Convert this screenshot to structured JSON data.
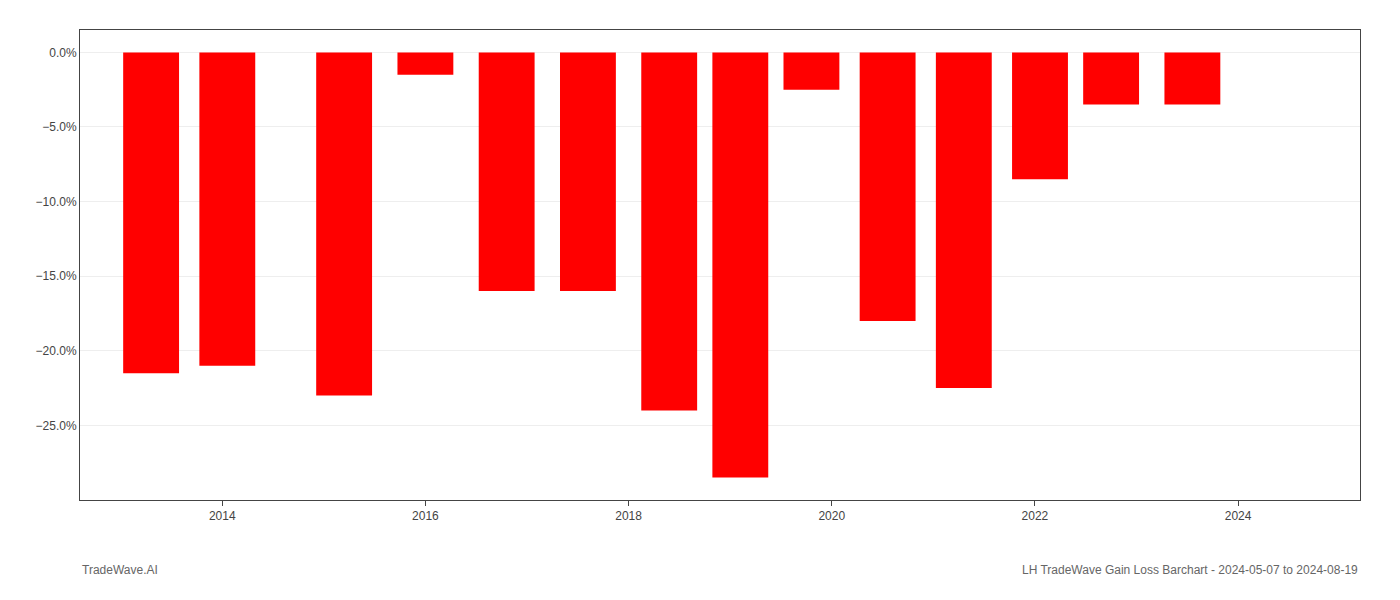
{
  "chart_data": {
    "type": "bar",
    "x": [
      2013.3,
      2014.05,
      2015.2,
      2016.0,
      2016.8,
      2017.6,
      2018.4,
      2019.1,
      2019.8,
      2020.55,
      2021.3,
      2022.05,
      2022.75,
      2023.55
    ],
    "values": [
      -21.5,
      -21.0,
      -23.0,
      -1.5,
      -16.0,
      -16.0,
      -24.0,
      -28.5,
      -2.5,
      -18.0,
      -22.5,
      -8.5,
      -3.5,
      -3.5
    ],
    "color": "#ff0000",
    "xlim": [
      2012.6,
      2025.2
    ],
    "xticks": [
      2014,
      2016,
      2018,
      2020,
      2022,
      2024
    ],
    "ylim": [
      -30,
      1.5
    ],
    "yticks": [
      {
        "value": 0.0,
        "label": "0.0%"
      },
      {
        "value": -5.0,
        "label": "−5.0%"
      },
      {
        "value": -10.0,
        "label": "−10.0%"
      },
      {
        "value": -15.0,
        "label": "−15.0%"
      },
      {
        "value": -20.0,
        "label": "−20.0%"
      },
      {
        "value": -25.0,
        "label": "−25.0%"
      }
    ],
    "grid": true,
    "annotations": [
      "TradeWave.AI",
      "LH TradeWave Gain Loss Barchart - 2024-05-07 to 2024-08-19"
    ]
  }
}
